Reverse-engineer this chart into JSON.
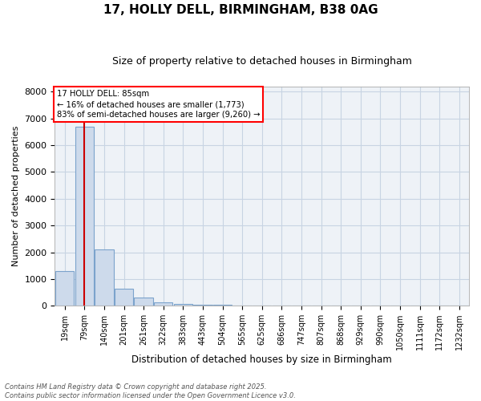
{
  "title": "17, HOLLY DELL, BIRMINGHAM, B38 0AG",
  "subtitle": "Size of property relative to detached houses in Birmingham",
  "xlabel": "Distribution of detached houses by size in Birmingham",
  "ylabel": "Number of detached properties",
  "annotation_line1": "17 HOLLY DELL: 85sqm",
  "annotation_line2": "← 16% of detached houses are smaller (1,773)",
  "annotation_line3": "83% of semi-detached houses are larger (9,260) →",
  "bar_color": "#cddaeb",
  "bar_edge_color": "#7ba3cc",
  "vline_color": "#cc0000",
  "grid_color": "#c8d4e3",
  "bg_color": "#eef2f7",
  "footer": "Contains HM Land Registry data © Crown copyright and database right 2025.\nContains public sector information licensed under the Open Government Licence v3.0.",
  "bins": [
    "19sqm",
    "79sqm",
    "140sqm",
    "201sqm",
    "261sqm",
    "322sqm",
    "383sqm",
    "443sqm",
    "504sqm",
    "565sqm",
    "625sqm",
    "686sqm",
    "747sqm",
    "807sqm",
    "868sqm",
    "929sqm",
    "990sqm",
    "1050sqm",
    "1111sqm",
    "1172sqm",
    "1232sqm"
  ],
  "values": [
    1300,
    6700,
    2100,
    650,
    300,
    130,
    80,
    50,
    50,
    0,
    0,
    0,
    0,
    0,
    0,
    0,
    0,
    0,
    0,
    0,
    0
  ],
  "vline_pos": 1.0,
  "ylim": [
    0,
    8200
  ],
  "yticks": [
    0,
    1000,
    2000,
    3000,
    4000,
    5000,
    6000,
    7000,
    8000
  ],
  "title_fontsize": 11,
  "subtitle_fontsize": 9
}
